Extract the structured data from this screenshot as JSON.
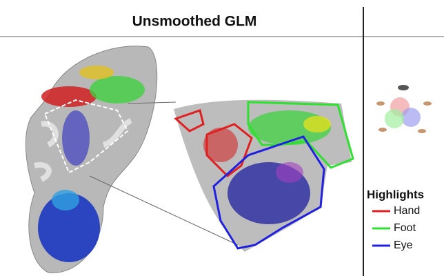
{
  "header": {
    "title": "Unsmoothed GLM"
  },
  "legend": {
    "title": "Highlights",
    "items": [
      {
        "label": "Hand",
        "color": "#e02020"
      },
      {
        "label": "Foot",
        "color": "#30e030"
      },
      {
        "label": "Eye",
        "color": "#2020e0"
      }
    ]
  }
}
